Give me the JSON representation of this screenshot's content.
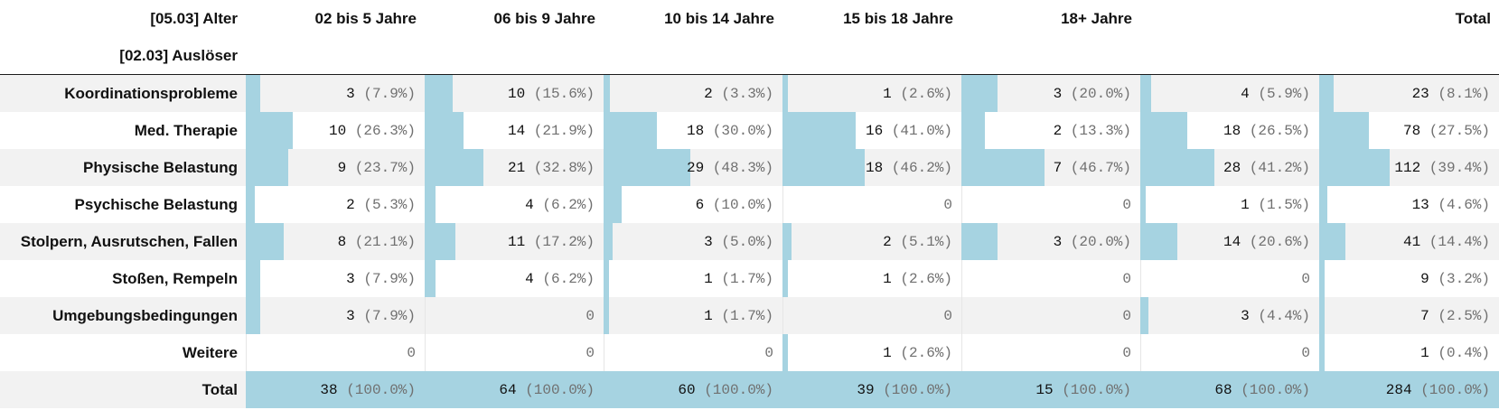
{
  "table": {
    "col_header_label": "[05.03] Alter",
    "row_header_label": "[02.03] Auslöser",
    "columns": [
      "02 bis 5 Jahre",
      "06 bis 9 Jahre",
      "10 bis 14 Jahre",
      "15 bis 18 Jahre",
      "18+ Jahre",
      "",
      "Total"
    ],
    "rows": [
      {
        "label": "Koordinationsprobleme",
        "cells": [
          {
            "n": "3",
            "p": "(7.9%)",
            "frac": 0.079
          },
          {
            "n": "10",
            "p": "(15.6%)",
            "frac": 0.156
          },
          {
            "n": "2",
            "p": "(3.3%)",
            "frac": 0.033
          },
          {
            "n": "1",
            "p": "(2.6%)",
            "frac": 0.026
          },
          {
            "n": "3",
            "p": "(20.0%)",
            "frac": 0.2
          },
          {
            "n": "4",
            "p": "(5.9%)",
            "frac": 0.059
          },
          {
            "n": "23",
            "p": "(8.1%)",
            "frac": 0.081
          }
        ]
      },
      {
        "label": "Med. Therapie",
        "cells": [
          {
            "n": "10",
            "p": "(26.3%)",
            "frac": 0.263
          },
          {
            "n": "14",
            "p": "(21.9%)",
            "frac": 0.219
          },
          {
            "n": "18",
            "p": "(30.0%)",
            "frac": 0.3
          },
          {
            "n": "16",
            "p": "(41.0%)",
            "frac": 0.41
          },
          {
            "n": "2",
            "p": "(13.3%)",
            "frac": 0.133
          },
          {
            "n": "18",
            "p": "(26.5%)",
            "frac": 0.265
          },
          {
            "n": "78",
            "p": "(27.5%)",
            "frac": 0.275
          }
        ]
      },
      {
        "label": "Physische Belastung",
        "cells": [
          {
            "n": "9",
            "p": "(23.7%)",
            "frac": 0.237
          },
          {
            "n": "21",
            "p": "(32.8%)",
            "frac": 0.328
          },
          {
            "n": "29",
            "p": "(48.3%)",
            "frac": 0.483
          },
          {
            "n": "18",
            "p": "(46.2%)",
            "frac": 0.462
          },
          {
            "n": "7",
            "p": "(46.7%)",
            "frac": 0.467
          },
          {
            "n": "28",
            "p": "(41.2%)",
            "frac": 0.412
          },
          {
            "n": "112",
            "p": "(39.4%)",
            "frac": 0.394
          }
        ]
      },
      {
        "label": "Psychische Belastung",
        "cells": [
          {
            "n": "2",
            "p": "(5.3%)",
            "frac": 0.053
          },
          {
            "n": "4",
            "p": "(6.2%)",
            "frac": 0.062
          },
          {
            "n": "6",
            "p": "(10.0%)",
            "frac": 0.1
          },
          {
            "n": "0",
            "p": "",
            "frac": 0
          },
          {
            "n": "0",
            "p": "",
            "frac": 0
          },
          {
            "n": "1",
            "p": "(1.5%)",
            "frac": 0.015
          },
          {
            "n": "13",
            "p": "(4.6%)",
            "frac": 0.046
          }
        ]
      },
      {
        "label": "Stolpern, Ausrutschen, Fallen",
        "cells": [
          {
            "n": "8",
            "p": "(21.1%)",
            "frac": 0.211
          },
          {
            "n": "11",
            "p": "(17.2%)",
            "frac": 0.172
          },
          {
            "n": "3",
            "p": "(5.0%)",
            "frac": 0.05
          },
          {
            "n": "2",
            "p": "(5.1%)",
            "frac": 0.051
          },
          {
            "n": "3",
            "p": "(20.0%)",
            "frac": 0.2
          },
          {
            "n": "14",
            "p": "(20.6%)",
            "frac": 0.206
          },
          {
            "n": "41",
            "p": "(14.4%)",
            "frac": 0.144
          }
        ]
      },
      {
        "label": "Stoßen, Rempeln",
        "cells": [
          {
            "n": "3",
            "p": "(7.9%)",
            "frac": 0.079
          },
          {
            "n": "4",
            "p": "(6.2%)",
            "frac": 0.062
          },
          {
            "n": "1",
            "p": "(1.7%)",
            "frac": 0.017
          },
          {
            "n": "1",
            "p": "(2.6%)",
            "frac": 0.026
          },
          {
            "n": "0",
            "p": "",
            "frac": 0
          },
          {
            "n": "0",
            "p": "",
            "frac": 0
          },
          {
            "n": "9",
            "p": "(3.2%)",
            "frac": 0.032
          }
        ]
      },
      {
        "label": "Umgebungsbedingungen",
        "cells": [
          {
            "n": "3",
            "p": "(7.9%)",
            "frac": 0.079
          },
          {
            "n": "0",
            "p": "",
            "frac": 0
          },
          {
            "n": "1",
            "p": "(1.7%)",
            "frac": 0.017
          },
          {
            "n": "0",
            "p": "",
            "frac": 0
          },
          {
            "n": "0",
            "p": "",
            "frac": 0
          },
          {
            "n": "3",
            "p": "(4.4%)",
            "frac": 0.044
          },
          {
            "n": "7",
            "p": "(2.5%)",
            "frac": 0.025
          }
        ]
      },
      {
        "label": "Weitere",
        "cells": [
          {
            "n": "0",
            "p": "",
            "frac": 0
          },
          {
            "n": "0",
            "p": "",
            "frac": 0
          },
          {
            "n": "0",
            "p": "",
            "frac": 0
          },
          {
            "n": "1",
            "p": "(2.6%)",
            "frac": 0.026
          },
          {
            "n": "0",
            "p": "",
            "frac": 0
          },
          {
            "n": "0",
            "p": "",
            "frac": 0
          },
          {
            "n": "1",
            "p": "(0.4%)",
            "frac": 0.004
          }
        ]
      }
    ],
    "total": {
      "label": "Total",
      "cells": [
        {
          "n": "38",
          "p": "(100.0%)",
          "frac": 1
        },
        {
          "n": "64",
          "p": "(100.0%)",
          "frac": 1
        },
        {
          "n": "60",
          "p": "(100.0%)",
          "frac": 1
        },
        {
          "n": "39",
          "p": "(100.0%)",
          "frac": 1
        },
        {
          "n": "15",
          "p": "(100.0%)",
          "frac": 1
        },
        {
          "n": "68",
          "p": "(100.0%)",
          "frac": 1
        },
        {
          "n": "284",
          "p": "(100.0%)",
          "frac": 1
        }
      ]
    }
  },
  "colors": {
    "bar": "#a6d3e1",
    "band": "#f2f2f2",
    "pct_text": "#707070"
  }
}
